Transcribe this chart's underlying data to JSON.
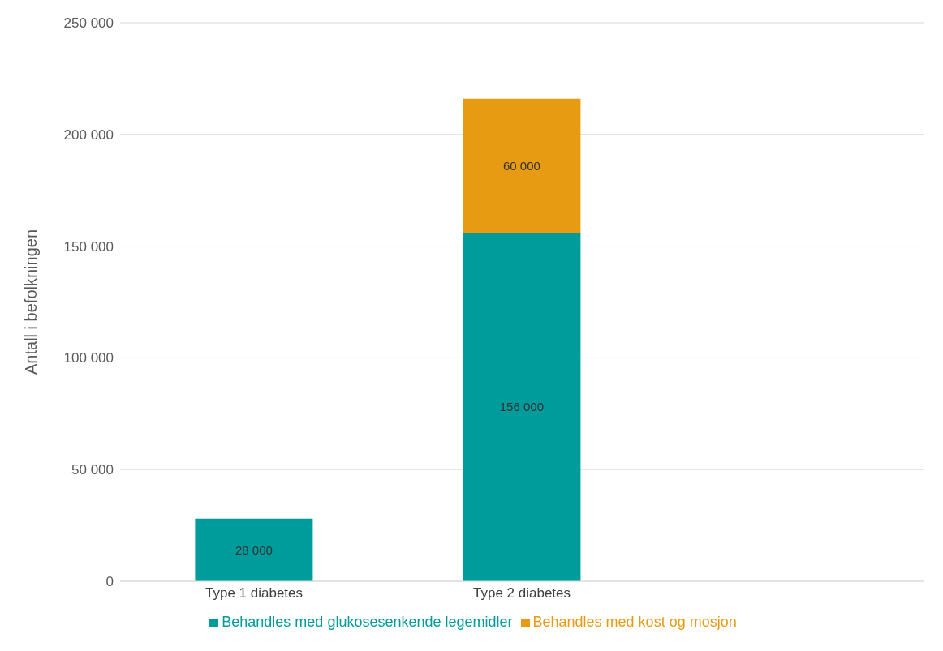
{
  "chart_data": {
    "type": "bar",
    "stacked": true,
    "ylabel": "Antall i befolkningen",
    "categories": [
      "Type 1 diabetes",
      "Type 2 diabetes"
    ],
    "series": [
      {
        "name": "Behandles med glukosesenkende legemidler",
        "color": "#009b9b",
        "values": [
          28000,
          156000
        ],
        "value_labels": [
          "28 000",
          "156 000"
        ]
      },
      {
        "name": "Behandles med kost og mosjon",
        "color": "#e69b12",
        "values": [
          null,
          60000
        ],
        "value_labels": [
          null,
          "60 000"
        ]
      }
    ],
    "ylim": [
      0,
      250000
    ],
    "yticks": [
      {
        "value": 0,
        "label": "0"
      },
      {
        "value": 50000,
        "label": "50 000"
      },
      {
        "value": 100000,
        "label": "100 000"
      },
      {
        "value": 150000,
        "label": "150 000"
      },
      {
        "value": 200000,
        "label": "200 000"
      },
      {
        "value": 250000,
        "label": "250 000"
      }
    ],
    "grid": "y",
    "legend": "bottom"
  }
}
